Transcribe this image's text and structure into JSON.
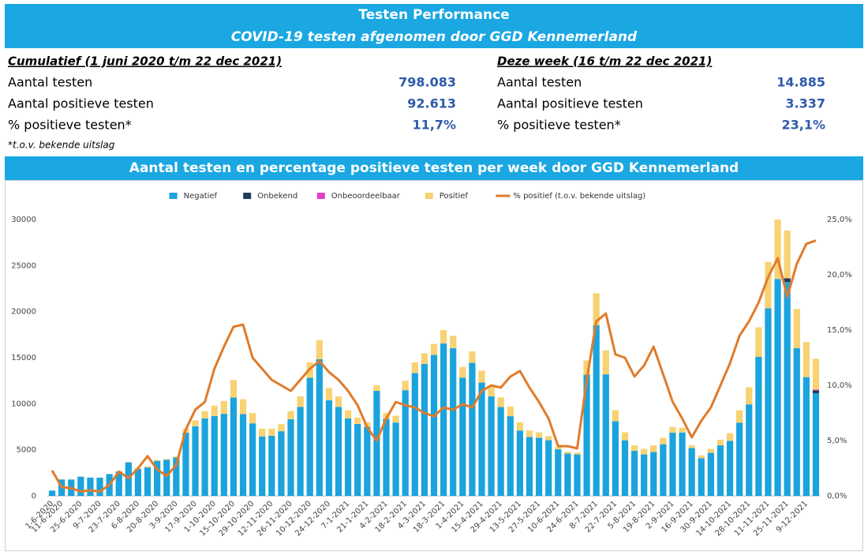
{
  "header": {
    "title": "Testen Performance",
    "subtitle": "COVID-19 testen afgenomen door GGD Kennemerland"
  },
  "summary": [
    {
      "heading": "Cumulatief (1 juni 2020 t/m 22 dec 2021)",
      "rows": [
        {
          "label": "Aantal testen",
          "value": "798.083"
        },
        {
          "label": "Aantal positieve testen",
          "value": "92.613"
        },
        {
          "label": "% positieve testen*",
          "value": "11,7%"
        }
      ]
    },
    {
      "heading": "Deze week (16 t/m 22 dec 2021)",
      "rows": [
        {
          "label": "Aantal testen",
          "value": "14.885"
        },
        {
          "label": "Aantal positieve testen",
          "value": "3.337"
        },
        {
          "label": "% positieve testen*",
          "value": "23,1%"
        }
      ]
    }
  ],
  "footnote": "*t.o.v. bekende uitslag",
  "chart_data": {
    "type": "bar",
    "stacked": true,
    "title": "Aantal testen en percentage positieve testen per week door GGD Kennemerland",
    "categories": [
      "1-6-2020",
      "11-6-2020",
      null,
      "25-6-2020",
      null,
      "9-7-2020",
      null,
      "23-7-2020",
      null,
      "6-8-2020",
      null,
      "20-8-2020",
      null,
      "3-9-2020",
      null,
      "17-9-2020",
      null,
      "1-10-2020",
      null,
      "15-10-2020",
      null,
      "29-10-2020",
      null,
      "12-11-2020",
      null,
      "26-11-2020",
      null,
      "10-12-2020",
      null,
      "24-12-2020",
      null,
      "7-1-2021",
      null,
      "21-1-2021",
      null,
      "4-2-2021",
      null,
      "18-2-2021",
      null,
      "4-3-2021",
      null,
      "18-3-2021",
      null,
      "1-4-2021",
      null,
      "15-4-2021",
      null,
      "29-4-2021",
      null,
      "13-5-2021",
      null,
      "27-5-2021",
      null,
      "10-6-2021",
      null,
      "24-6-2021",
      null,
      "8-7-2021",
      null,
      "22-7-2021",
      null,
      "5-8-2021",
      null,
      "19-8-2021",
      null,
      "2-9-2021",
      null,
      "16-9-2021",
      null,
      "30-9-2021",
      null,
      "14-10-2021",
      null,
      "28-10-2021",
      null,
      "11-11-2021",
      null,
      "25-11-2021",
      null,
      "9-12-2021",
      null
    ],
    "series": [
      {
        "name": "Negatief",
        "color": "#1ba3dd",
        "values": [
          586,
          1786,
          1787,
          2092,
          1990,
          1992,
          2376,
          2641,
          3641,
          2925,
          3085,
          3806,
          3928,
          4180,
          6862,
          7560,
          8418,
          8673,
          8910,
          10672,
          8872,
          7875,
          6460,
          6533,
          7020,
          8326,
          9666,
          12832,
          14838,
          10390,
          9666,
          8416,
          7803,
          7504,
          11400,
          8370,
          7960,
          11475,
          13340,
          14337,
          15312,
          16560,
          16043,
          12838,
          14444,
          12308,
          10800,
          9651,
          8652,
          7096,
          6404,
          6313,
          6045,
          5061,
          4584,
          4498,
          13156,
          18524,
          13193,
          8110,
          6037,
          4906,
          4498,
          4757,
          5607,
          6862,
          6882,
          5208,
          4101,
          4692,
          5490,
          5984,
          7951,
          9936,
          15097,
          20371,
          23550,
          23216,
          16037,
          12892,
          11148
        ]
      },
      {
        "name": "Onbekend",
        "color": "#1f3a5f",
        "values": [
          0,
          0,
          0,
          0,
          0,
          0,
          0,
          0,
          0,
          0,
          0,
          0,
          0,
          0,
          0,
          0,
          0,
          0,
          0,
          0,
          0,
          0,
          0,
          0,
          0,
          0,
          0,
          0,
          0,
          0,
          0,
          0,
          0,
          0,
          0,
          0,
          0,
          0,
          0,
          0,
          0,
          0,
          0,
          0,
          0,
          0,
          0,
          0,
          0,
          0,
          0,
          0,
          0,
          0,
          0,
          0,
          0,
          0,
          0,
          0,
          0,
          0,
          0,
          0,
          0,
          0,
          0,
          0,
          0,
          0,
          0,
          0,
          0,
          0,
          0,
          0,
          0,
          400,
          0,
          0,
          300
        ]
      },
      {
        "name": "Onbeoordeelbaar",
        "color": "#e040c8",
        "values": [
          0,
          0,
          0,
          0,
          0,
          0,
          0,
          0,
          0,
          0,
          0,
          0,
          0,
          0,
          0,
          0,
          0,
          0,
          0,
          0,
          0,
          0,
          0,
          0,
          0,
          0,
          0,
          0,
          0,
          0,
          0,
          0,
          0,
          0,
          0,
          0,
          0,
          0,
          0,
          0,
          0,
          0,
          0,
          0,
          0,
          0,
          0,
          0,
          0,
          0,
          0,
          0,
          0,
          0,
          0,
          0,
          0,
          0,
          0,
          0,
          0,
          0,
          0,
          0,
          0,
          0,
          0,
          0,
          0,
          0,
          0,
          0,
          0,
          0,
          0,
          0,
          0,
          0,
          0,
          0,
          100
        ]
      },
      {
        "name": "Positief",
        "color": "#f8d273",
        "values": [
          14,
          14,
          13,
          8,
          10,
          8,
          24,
          59,
          59,
          75,
          115,
          94,
          72,
          120,
          438,
          640,
          782,
          1127,
          1390,
          1928,
          1628,
          1125,
          840,
          767,
          780,
          874,
          1134,
          1668,
          2062,
          1310,
          1134,
          884,
          697,
          496,
          600,
          630,
          740,
          1025,
          1160,
          1163,
          1188,
          1440,
          1357,
          1162,
          1256,
          1292,
          1200,
          1049,
          1048,
          904,
          696,
          587,
          455,
          239,
          216,
          202,
          1544,
          3476,
          2607,
          1190,
          863,
          594,
          602,
          743,
          693,
          638,
          518,
          292,
          299,
          408,
          610,
          816,
          1349,
          1864,
          3203,
          5029,
          6450,
          5184,
          4263,
          3808,
          3337
        ]
      },
      {
        "name": "% positief (t.o.v. bekende uitslag)",
        "type": "line",
        "axis": "y2",
        "color": "#e07b2a",
        "values": [
          2.3,
          0.8,
          0.7,
          0.4,
          0.5,
          0.4,
          1.0,
          2.2,
          1.6,
          2.5,
          3.6,
          2.4,
          1.8,
          2.8,
          6.0,
          7.8,
          8.5,
          11.5,
          13.5,
          15.3,
          15.5,
          12.5,
          11.5,
          10.5,
          10.0,
          9.5,
          10.5,
          11.5,
          12.2,
          11.2,
          10.5,
          9.5,
          8.2,
          6.2,
          5.0,
          7.0,
          8.5,
          8.2,
          8.0,
          7.5,
          7.2,
          8.0,
          7.8,
          8.3,
          8.0,
          9.5,
          10.0,
          9.8,
          10.8,
          11.3,
          9.8,
          8.5,
          7.0,
          4.5,
          4.5,
          4.3,
          10.5,
          15.8,
          16.5,
          12.8,
          12.5,
          10.8,
          11.8,
          13.5,
          11.0,
          8.5,
          7.0,
          5.3,
          6.8,
          8.0,
          10.0,
          12.0,
          14.5,
          15.8,
          17.5,
          19.8,
          21.5,
          18.0,
          21.0,
          22.8,
          23.1
        ]
      }
    ],
    "ylim": [
      0,
      30000
    ],
    "yticks": [
      0,
      5000,
      10000,
      15000,
      20000,
      25000,
      30000
    ],
    "y2lim": [
      0,
      25
    ],
    "y2ticks": [
      {
        "value": 0,
        "label": "0,0%"
      },
      {
        "value": 5,
        "label": "5,0%"
      },
      {
        "value": 10,
        "label": "10,0%"
      },
      {
        "value": 15,
        "label": "15,0%"
      },
      {
        "value": 20,
        "label": "20,0%"
      },
      {
        "value": 25,
        "label": "25,0%"
      }
    ],
    "grid": false,
    "legend": "top"
  }
}
